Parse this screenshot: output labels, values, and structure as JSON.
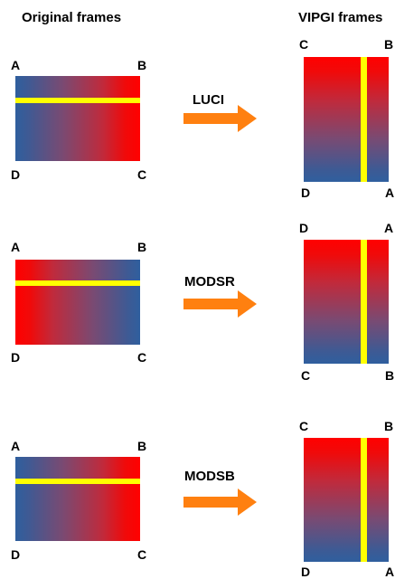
{
  "headers": {
    "original": "Original frames",
    "vipgi": "VIPGI frames"
  },
  "instruments": [
    "LUCI",
    "MODSR",
    "MODSB"
  ],
  "rows": [
    {
      "original": {
        "tl": "A",
        "tr": "B",
        "bl": "D",
        "br": "C"
      },
      "vipgi": {
        "tl": "C",
        "tr": "B",
        "bl": "D",
        "br": "A"
      }
    },
    {
      "original": {
        "tl": "A",
        "tr": "B",
        "bl": "D",
        "br": "C"
      },
      "vipgi": {
        "tl": "D",
        "tr": "A",
        "bl": "C",
        "br": "B"
      }
    },
    {
      "original": {
        "tl": "A",
        "tr": "B",
        "bl": "D",
        "br": "C"
      },
      "vipgi": {
        "tl": "C",
        "tr": "B",
        "bl": "D",
        "br": "A"
      }
    }
  ],
  "colors": {
    "red": "#ff0000",
    "blue": "#2f5f9e",
    "yellow": "#ffff00",
    "arrow": "#ff8010"
  }
}
